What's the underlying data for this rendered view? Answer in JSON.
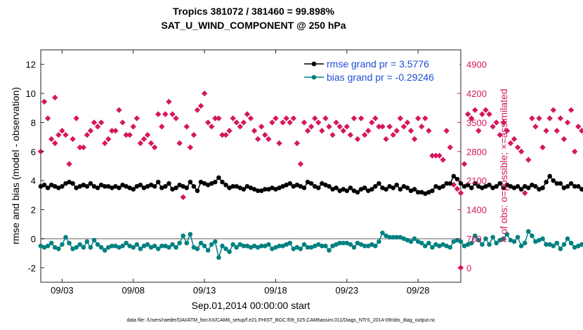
{
  "chart_data": {
    "type": "line",
    "title": "Tropics 381072 / 381460 = 99.898%",
    "subtitle": "SAT_U_WIND_COMPONENT @ 250 hPa",
    "xlabel": "Sep.01,2014 00:00:00 start",
    "ylabel_left": "rmse and bias (model - observation)",
    "ylabel_right": "# of obs: o=possible; ×=assimilated",
    "footer": "data file: /Users/raeder/DAI/ATM_forcXX/CAM6_setup/f.e21.FHIST_BGC.f09_025.CAM6assim.011/Diags_NTrS_2014-09/obs_diag_output.nc",
    "xlim": [
      1.5,
      31.0
    ],
    "ylim_left": [
      -3,
      13
    ],
    "ylim_right": [
      -350,
      5250
    ],
    "x_ticks": [
      {
        "pos": 3,
        "label": "09/03"
      },
      {
        "pos": 8,
        "label": "09/08"
      },
      {
        "pos": 13,
        "label": "09/13"
      },
      {
        "pos": 18,
        "label": "09/18"
      },
      {
        "pos": 23,
        "label": "09/23"
      },
      {
        "pos": 28,
        "label": "09/28"
      }
    ],
    "y_ticks_left": [
      "-2",
      "0",
      "2",
      "4",
      "6",
      "8",
      "10",
      "12"
    ],
    "y_ticks_right": [
      "0",
      "700",
      "1400",
      "2100",
      "2800",
      "3500",
      "4200",
      "4900"
    ],
    "legend": [
      {
        "label": "rmse grand pr = 3.5776",
        "color": "#000000"
      },
      {
        "label": "bias grand pr = -0.29246",
        "color": "#008080"
      }
    ],
    "colors": {
      "rmse": "#000000",
      "bias": "#008080",
      "obs": "#d6175f",
      "zero_line": "#b0b0b0",
      "legend_text": "#1f4fd6"
    },
    "x_start": 1.5,
    "x_step": 0.25,
    "series": [
      {
        "name": "rmse",
        "values": [
          3.6,
          3.7,
          3.5,
          3.7,
          3.6,
          3.5,
          3.6,
          3.8,
          3.9,
          3.8,
          3.5,
          3.6,
          3.7,
          3.6,
          3.8,
          3.6,
          3.5,
          3.7,
          3.6,
          3.6,
          3.5,
          3.6,
          3.5,
          3.7,
          3.6,
          3.5,
          3.4,
          3.6,
          3.7,
          3.5,
          3.6,
          3.7,
          3.6,
          3.9,
          3.5,
          3.6,
          3.8,
          3.4,
          3.5,
          3.7,
          3.6,
          3.5,
          3.9,
          3.6,
          3.3,
          3.9,
          3.8,
          3.7,
          3.8,
          3.9,
          4.2,
          3.9,
          3.7,
          3.5,
          3.6,
          3.6,
          3.5,
          3.4,
          3.6,
          3.5,
          3.4,
          3.3,
          3.3,
          3.4,
          3.4,
          3.5,
          3.4,
          3.5,
          3.6,
          3.7,
          3.8,
          3.6,
          3.7,
          3.6,
          3.5,
          3.9,
          3.8,
          3.6,
          3.5,
          3.8,
          3.7,
          3.6,
          3.4,
          3.5,
          3.3,
          3.4,
          3.3,
          3.5,
          3.3,
          3.2,
          3.4,
          3.5,
          3.3,
          3.4,
          3.6,
          3.8,
          3.5,
          3.4,
          3.6,
          3.5,
          3.7,
          3.4,
          3.6,
          3.5,
          3.3,
          3.4,
          3.2,
          3.2,
          3.1,
          3.2,
          3.3,
          3.6,
          3.5,
          3.6,
          3.8,
          3.8,
          4.3,
          4.1,
          3.8,
          3.6,
          3.7,
          3.5,
          3.8,
          3.6,
          3.5,
          3.6,
          3.7,
          3.5,
          3.6,
          3.8,
          3.5,
          3.7,
          3.6,
          3.5,
          3.6,
          3.4,
          3.6,
          3.5,
          3.7,
          3.6,
          3.4,
          3.5,
          3.9,
          4.3,
          4.0,
          3.8,
          3.8,
          3.5,
          3.6,
          3.8,
          3.6,
          3.6,
          3.4,
          3.5,
          3.5,
          3.3,
          3.5,
          3.1
        ],
        "marker": "circle"
      },
      {
        "name": "bias",
        "values": [
          -0.5,
          -0.6,
          -0.5,
          -0.3,
          -0.6,
          -0.7,
          -0.4,
          0.1,
          -0.3,
          -0.7,
          -0.6,
          -0.4,
          -0.6,
          -0.2,
          -0.6,
          -0.1,
          -0.4,
          -0.6,
          -0.8,
          -0.6,
          -0.5,
          -0.5,
          -0.6,
          -0.5,
          -0.3,
          -0.5,
          -0.6,
          -0.4,
          -0.7,
          -0.5,
          -0.4,
          -0.6,
          -0.5,
          -0.7,
          -0.5,
          -0.5,
          -0.6,
          -0.4,
          -0.6,
          -0.3,
          0.2,
          -0.3,
          0.3,
          -0.6,
          -0.7,
          -0.3,
          -0.5,
          -0.8,
          -0.4,
          -0.2,
          -1.3,
          -0.5,
          -0.7,
          -0.9,
          -0.4,
          -0.6,
          -0.4,
          -0.5,
          -0.5,
          -0.6,
          -0.5,
          -0.6,
          -0.5,
          -0.5,
          -0.4,
          -0.7,
          -0.6,
          -0.5,
          -0.5,
          -0.4,
          -0.3,
          -0.7,
          -0.6,
          -0.7,
          -0.4,
          -0.6,
          -0.6,
          -0.5,
          -0.4,
          -0.5,
          -0.5,
          -0.8,
          -0.5,
          -0.4,
          -0.3,
          -0.3,
          -0.3,
          -0.4,
          -0.6,
          -0.3,
          -0.4,
          -0.5,
          -0.5,
          -0.4,
          -0.5,
          -0.2,
          0.4,
          0.2,
          0.1,
          0.1,
          0.1,
          0.1,
          0.0,
          -0.1,
          -0.2,
          0.0,
          -0.2,
          -0.3,
          -0.5,
          -0.3,
          -0.6,
          -0.4,
          -0.5,
          -0.4,
          -0.5,
          -0.6,
          -0.2,
          -0.1,
          -0.2,
          -0.5,
          -0.4,
          -0.3,
          0.2,
          -0.1,
          -0.4,
          0.0,
          -0.4,
          0.1,
          -0.3,
          -0.1,
          0.0,
          0.3,
          -0.1,
          -0.2,
          0.1,
          -0.5,
          -0.3,
          0.5,
          0.2,
          -0.2,
          -0.1,
          0.0,
          -0.4,
          -0.4,
          -0.5,
          -0.3,
          -0.7,
          -0.4,
          0.0,
          -0.3,
          -0.6,
          -0.5,
          -0.4,
          -0.6,
          -0.4,
          -0.2,
          -0.5,
          -0.3,
          0.1,
          0.0,
          -0.6,
          0.1
        ],
        "marker": "circle"
      },
      {
        "name": "obs_possible",
        "values": [
          2800,
          4000,
          3600,
          3100,
          3000,
          3200,
          3300,
          3200,
          2500,
          3100,
          3600,
          2900,
          2900,
          3200,
          3300,
          3500,
          3400,
          3500,
          3000,
          3100,
          3300,
          3300,
          3800,
          3500,
          3200,
          3200,
          3400,
          3600,
          3000,
          3100,
          3200,
          3000,
          2900,
          3700,
          3400,
          3700,
          4000,
          3700,
          3600,
          3000,
          1700,
          3400,
          2900,
          3200,
          3800,
          3900,
          4200,
          3500,
          3400,
          3600,
          3600,
          3200,
          3200,
          3300,
          3600,
          3500,
          3400,
          3500,
          3700,
          3600,
          3300,
          3100,
          3400,
          3200,
          3100,
          3500,
          3600,
          3000,
          3500,
          3600,
          3500,
          3600,
          3000,
          2500,
          3500,
          3300,
          3400,
          3600,
          3500,
          3300,
          3600,
          3400,
          3200,
          3500,
          3400,
          3300,
          3400,
          3200,
          3600,
          3100,
          3600,
          3200,
          3300,
          3500,
          3600,
          3400,
          3400,
          3100,
          3400,
          3200,
          3300,
          3600,
          3400,
          3500,
          3300,
          3100,
          3600,
          3400,
          3600,
          3300,
          2700,
          2700,
          2700,
          2600,
          3300,
          2900,
          2000,
          1900,
          1800,
          2500,
          3700,
          3600,
          3800,
          3300,
          3700,
          3800,
          3700,
          3400,
          3500,
          3200,
          3500,
          3300,
          3000,
          3100,
          2900,
          2800,
          1800,
          2600,
          3600,
          3400,
          3600,
          2900,
          3300,
          3600,
          3800,
          3300,
          3600,
          3100,
          3500,
          3800,
          2800,
          3400,
          3300,
          3200,
          3300,
          3700,
          3200,
          3700,
          3500,
          3100,
          3600
        ],
        "marker": "diamond"
      }
    ],
    "obs_isolated": [
      {
        "x": 2.5,
        "value": 4100
      },
      {
        "x": 31.0,
        "value": 0
      }
    ]
  }
}
